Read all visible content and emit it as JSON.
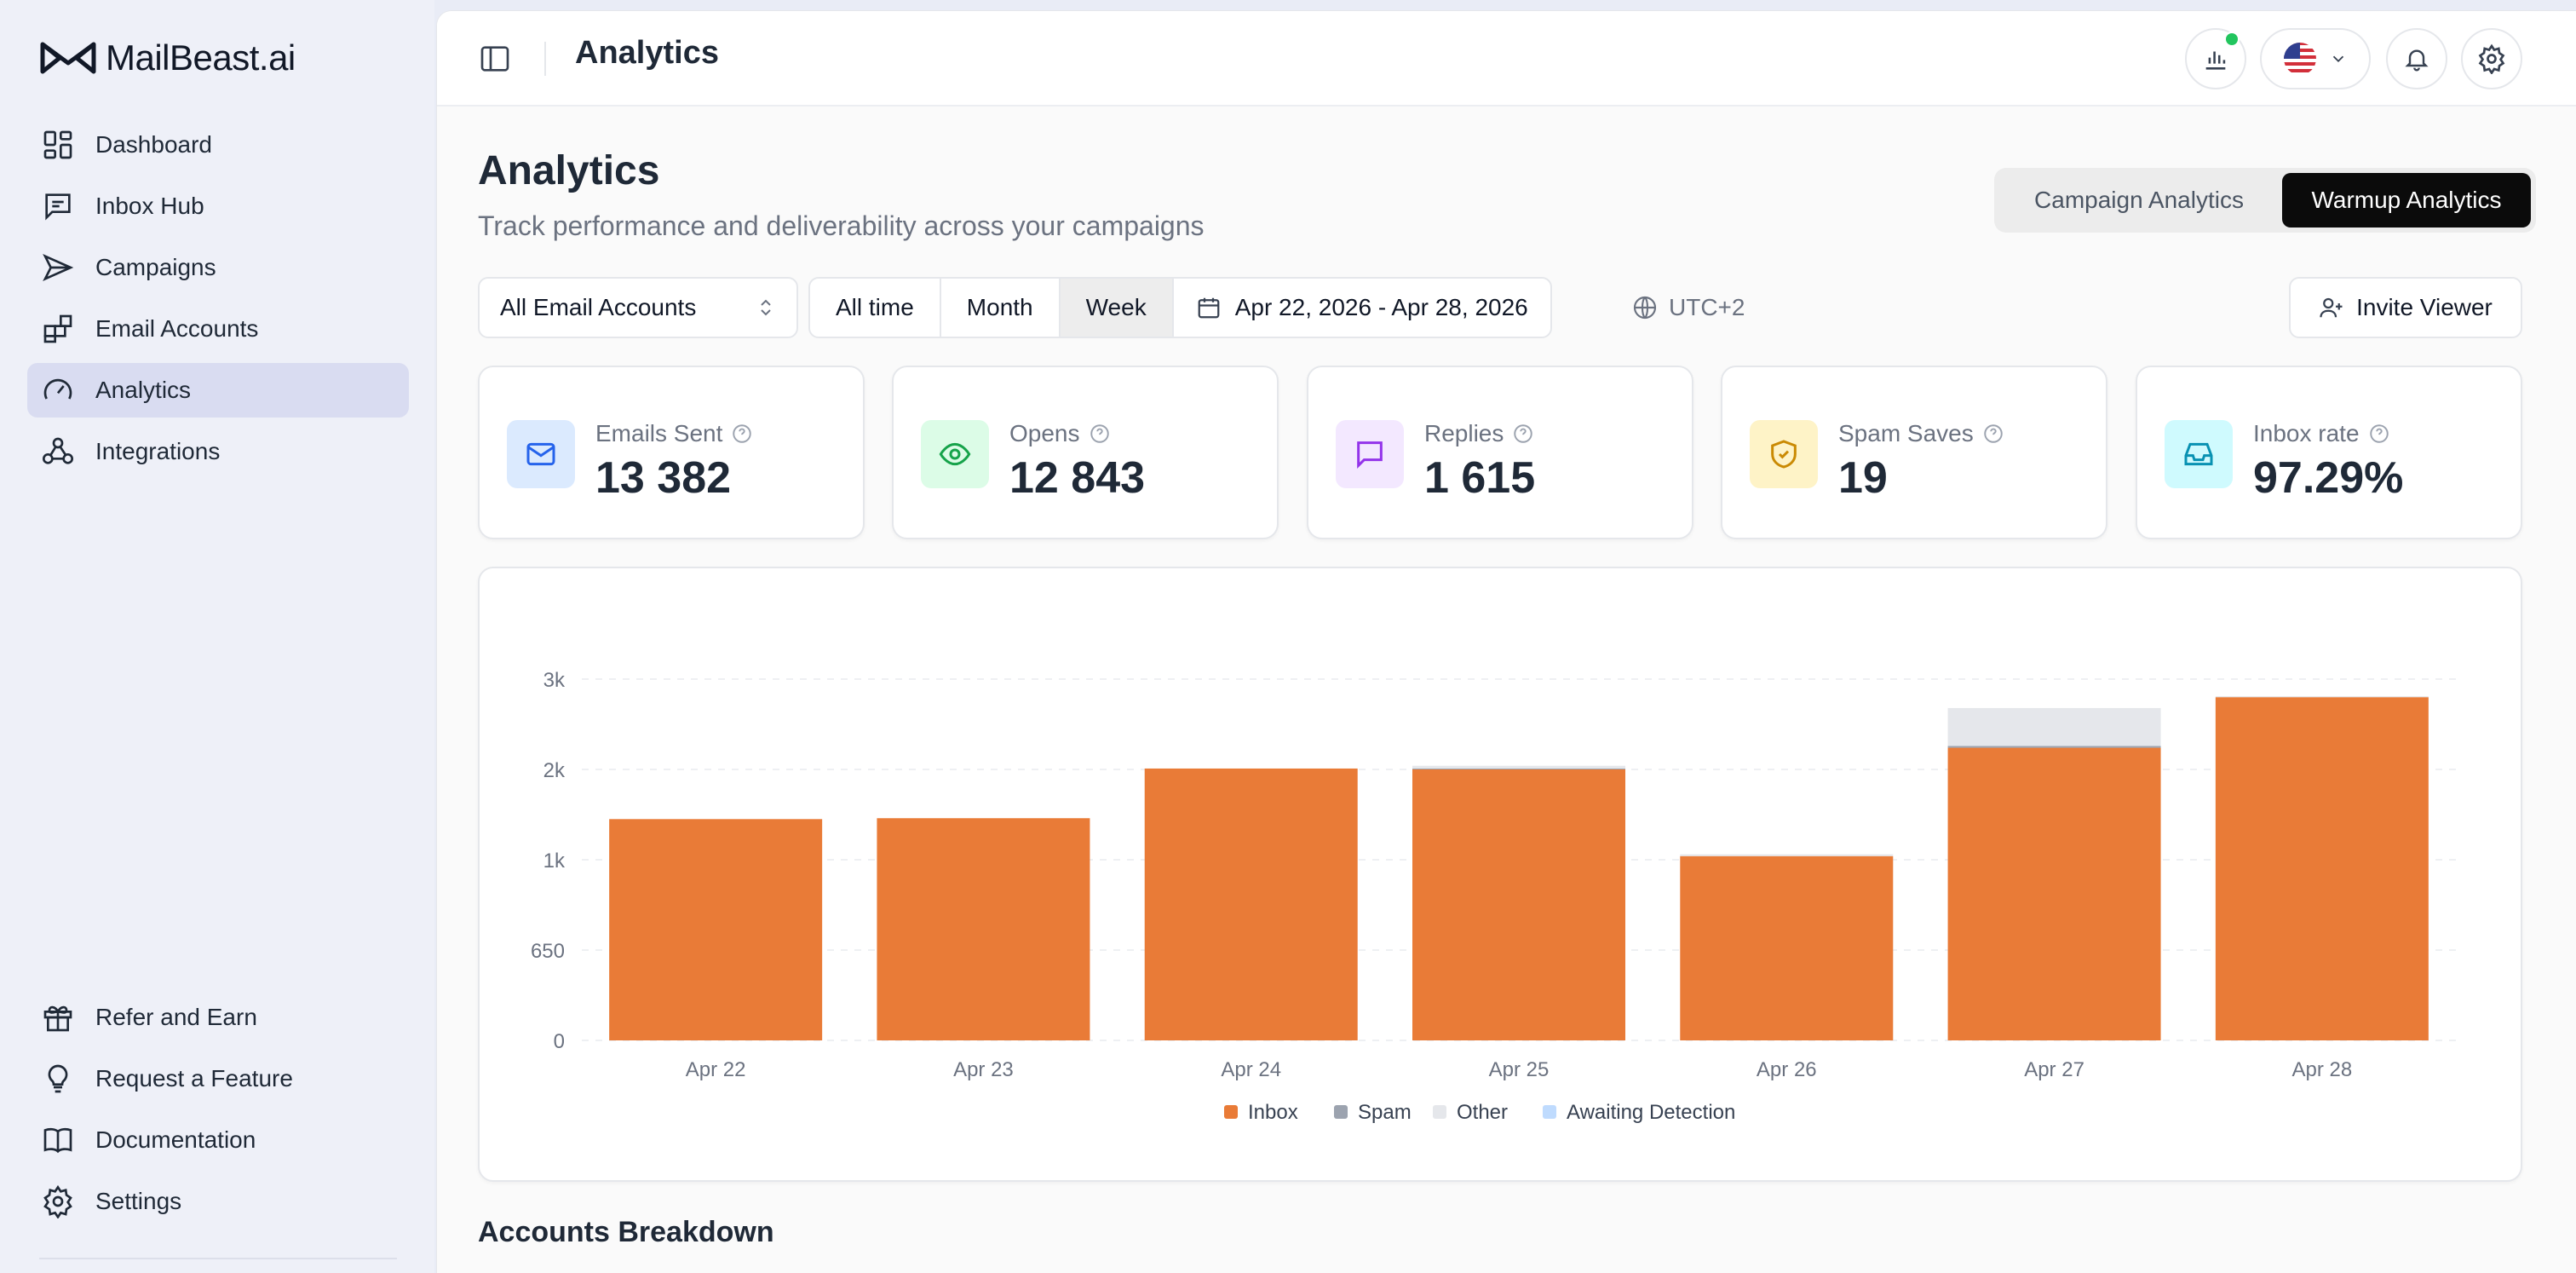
{
  "brand": {
    "name": "MailBeast.ai"
  },
  "sidebar": {
    "items": [
      {
        "label": "Dashboard",
        "icon": "dashboard-icon"
      },
      {
        "label": "Inbox Hub",
        "icon": "message-square-icon"
      },
      {
        "label": "Campaigns",
        "icon": "send-icon"
      },
      {
        "label": "Email Accounts",
        "icon": "blocks-icon"
      },
      {
        "label": "Analytics",
        "icon": "gauge-icon",
        "active": true
      },
      {
        "label": "Integrations",
        "icon": "webhook-icon"
      }
    ],
    "bottom_items": [
      {
        "label": "Refer and Earn",
        "icon": "gift-icon"
      },
      {
        "label": "Request a Feature",
        "icon": "lightbulb-icon"
      },
      {
        "label": "Documentation",
        "icon": "book-icon"
      },
      {
        "label": "Settings",
        "icon": "settings-icon"
      }
    ]
  },
  "header": {
    "title": "Analytics"
  },
  "page": {
    "title": "Analytics",
    "subtitle": "Track performance and deliverability across your campaigns",
    "view_tabs": [
      "Campaign Analytics",
      "Warmup Analytics"
    ],
    "selected_view": "Warmup Analytics"
  },
  "filters": {
    "account": "All Email Accounts",
    "ranges": [
      "All time",
      "Month",
      "Week"
    ],
    "selected_range": "Week",
    "date_range": "Apr 22, 2026 - Apr 28, 2026",
    "timezone": "UTC+2",
    "invite_label": "Invite Viewer"
  },
  "stats": [
    {
      "label": "Emails Sent",
      "value": "13 382",
      "icon": "mail-icon",
      "color": "#2563eb",
      "bg": "#dbeafe"
    },
    {
      "label": "Opens",
      "value": "12 843",
      "icon": "eye-icon",
      "color": "#16a34a",
      "bg": "#dcfce7"
    },
    {
      "label": "Replies",
      "value": "1 615",
      "icon": "message-icon",
      "color": "#9333ea",
      "bg": "#f3e8ff"
    },
    {
      "label": "Spam Saves",
      "value": "19",
      "icon": "shield-check-icon",
      "color": "#ca8a04",
      "bg": "#fef3c7"
    },
    {
      "label": "Inbox rate",
      "value": "97.29%",
      "icon": "inbox-icon",
      "color": "#0891b2",
      "bg": "#cffafe"
    }
  ],
  "chart_data": {
    "type": "bar",
    "stacked": true,
    "categories": [
      "Apr 22",
      "Apr 23",
      "Apr 24",
      "Apr 25",
      "Apr 26",
      "Apr 27",
      "Apr 28"
    ],
    "y_ticks": [
      "0",
      "650",
      "1k",
      "2k",
      "3k"
    ],
    "series": [
      {
        "name": "Inbox",
        "color": "#e97b37",
        "values": [
          1450,
          1460,
          2010,
          2000,
          1040,
          2240,
          2800
        ]
      },
      {
        "name": "Spam",
        "color": "#9ca3af",
        "values": [
          0,
          0,
          0,
          10,
          0,
          20,
          0
        ]
      },
      {
        "name": "Other",
        "color": "#e5e7eb",
        "values": [
          0,
          0,
          0,
          30,
          20,
          420,
          10
        ]
      },
      {
        "name": "Awaiting Detection",
        "color": "#bfdbfe",
        "values": [
          0,
          0,
          0,
          0,
          0,
          0,
          0
        ]
      }
    ],
    "grid": true,
    "legend_position": "bottom-center"
  },
  "accounts_breakdown": {
    "title": "Accounts Breakdown"
  }
}
